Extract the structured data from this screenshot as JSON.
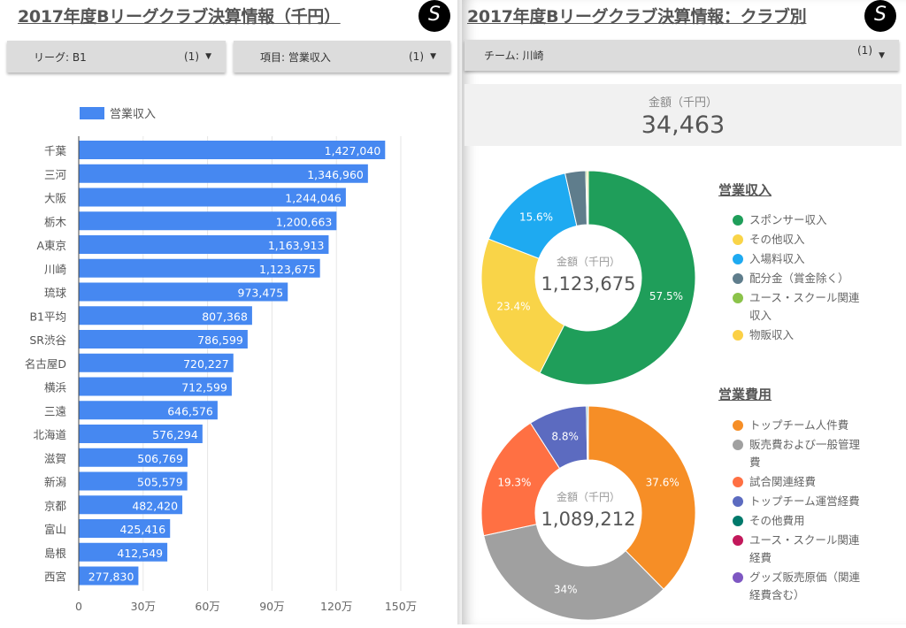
{
  "left": {
    "title": "2017年度Bリーグクラブ決算情報（千円）",
    "logo": "S",
    "filters": [
      {
        "label": "リーグ: B1",
        "count": "(1)",
        "icon": "caret-down-icon"
      },
      {
        "label": "項目: 営業収入",
        "count": "(1)",
        "icon": "caret-down-icon"
      }
    ]
  },
  "right": {
    "title": "2017年度Bリーグクラブ決算情報：クラブ別",
    "logo": "S",
    "filter": {
      "label": "チーム: 川崎",
      "count": "(1)",
      "icon": "caret-down-icon"
    },
    "scorecard": {
      "label": "金額（千円）",
      "value": "34,463"
    }
  },
  "chart_data": [
    {
      "type": "bar",
      "orientation": "horizontal",
      "legend": "営業収入",
      "color": "#4688f1",
      "categories": [
        "千葉",
        "三河",
        "大阪",
        "栃木",
        "A東京",
        "川崎",
        "琉球",
        "B1平均",
        "SR渋谷",
        "名古屋D",
        "横浜",
        "三遠",
        "北海道",
        "滋賀",
        "新潟",
        "京都",
        "富山",
        "島根",
        "西宮"
      ],
      "values": [
        1427040,
        1346960,
        1244046,
        1200663,
        1163913,
        1123675,
        973475,
        807368,
        786599,
        720227,
        712599,
        646576,
        576294,
        506769,
        505579,
        482420,
        425416,
        412549,
        277830
      ],
      "value_labels": [
        "1,427,040",
        "1,346,960",
        "1,244,046",
        "1,200,663",
        "1,163,913",
        "1,123,675",
        "973,475",
        "807,368",
        "786,599",
        "720,227",
        "712,599",
        "646,576",
        "576,294",
        "506,769",
        "505,579",
        "482,420",
        "425,416",
        "412,549",
        "277,830"
      ],
      "xlim": [
        0,
        1500000
      ],
      "xticks": [
        0,
        300000,
        600000,
        900000,
        1200000,
        1500000
      ],
      "xtick_labels": [
        "0",
        "30万",
        "60万",
        "90万",
        "120万",
        "150万"
      ],
      "grid": true
    },
    {
      "type": "pie",
      "donut": true,
      "title": "営業収入",
      "center_label": "金額（千円）",
      "center_value": "1,123,675",
      "labels": [
        "スポンサー収入",
        "その他収入",
        "入場料収入",
        "配分金（賞金除く）",
        "ユース・スクール関連収入",
        "物販収入"
      ],
      "values": [
        57.5,
        23.4,
        15.6,
        3.1,
        0.2,
        0.2
      ],
      "slice_labels": [
        "57.5%",
        "23.4%",
        "15.6%",
        "",
        "",
        ""
      ],
      "colors": [
        "#1f9e5a",
        "#f9d448",
        "#1eaaf1",
        "#5f7d8c",
        "#8bc34a",
        "#fbd046"
      ]
    },
    {
      "type": "pie",
      "donut": true,
      "title": "営業費用",
      "center_label": "金額（千円）",
      "center_value": "1,089,212",
      "labels": [
        "トップチーム人件費",
        "販売費および一般管理費",
        "試合関連経費",
        "トップチーム運営経費",
        "その他費用",
        "ユース・スクール関連経費",
        "グッズ販売原価（関連経費含む）"
      ],
      "values": [
        37.6,
        34.0,
        19.3,
        8.8,
        0.2,
        0.05,
        0.05
      ],
      "slice_labels": [
        "37.6%",
        "34%",
        "19.3%",
        "8.8%",
        "",
        "",
        ""
      ],
      "colors": [
        "#f68e26",
        "#a0a0a0",
        "#ff7043",
        "#5c6bc0",
        "#00796b",
        "#c2185b",
        "#7e57c2"
      ]
    }
  ]
}
